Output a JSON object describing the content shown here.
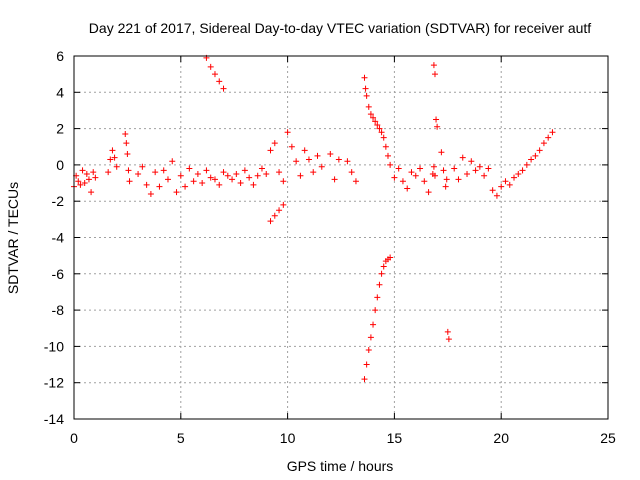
{
  "chart_data": {
    "type": "scatter",
    "title": "Day 221 of 2017, Sidereal Day-to-day VTEC variation (SDTVAR) for receiver autf",
    "xlabel": "GPS time / hours",
    "ylabel": "SDTVAR / TECUs",
    "xlim": [
      0,
      25
    ],
    "ylim": [
      -14,
      6
    ],
    "xticks": [
      0,
      5,
      10,
      15,
      20,
      25
    ],
    "yticks": [
      -14,
      -12,
      -10,
      -8,
      -6,
      -4,
      -2,
      0,
      2,
      4,
      6
    ],
    "xtick_labels": [
      "0",
      "5",
      "10",
      "15",
      "20",
      "25"
    ],
    "ytick_labels": [
      "-14",
      "-12",
      "-10",
      "-8",
      "-6",
      "-4",
      "-2",
      "0",
      "2",
      "4",
      "6"
    ],
    "grid": true,
    "marker": "+",
    "color": "#ff0000",
    "series": [
      {
        "name": "SDTVAR",
        "x": [
          0.0,
          0.1,
          0.2,
          0.3,
          0.4,
          0.5,
          0.6,
          0.7,
          0.8,
          0.9,
          1.0,
          1.6,
          1.7,
          1.8,
          1.9,
          2.0,
          2.4,
          2.45,
          2.5,
          2.55,
          2.6,
          3.0,
          3.2,
          3.4,
          3.6,
          3.8,
          4.0,
          4.2,
          4.4,
          4.6,
          4.8,
          5.0,
          5.2,
          5.4,
          5.6,
          5.8,
          6.0,
          6.2,
          6.4,
          6.6,
          6.8,
          7.0,
          7.2,
          7.4,
          7.6,
          7.8,
          8.0,
          8.2,
          8.4,
          8.6,
          8.8,
          9.0,
          9.2,
          9.4,
          9.6,
          9.8,
          6.2,
          6.4,
          6.6,
          6.8,
          7.0,
          9.2,
          9.4,
          9.6,
          9.8,
          10.0,
          10.2,
          10.4,
          10.6,
          10.8,
          11.0,
          11.2,
          11.4,
          11.6,
          12.0,
          12.2,
          12.4,
          12.8,
          13.0,
          13.2,
          13.6,
          13.65,
          13.7,
          13.8,
          13.9,
          14.0,
          14.1,
          14.2,
          14.3,
          14.4,
          14.5,
          14.6,
          14.7,
          14.8,
          13.6,
          13.7,
          13.8,
          13.9,
          14.0,
          14.1,
          14.2,
          14.3,
          14.4,
          14.5,
          14.6,
          14.7,
          14.8,
          15.0,
          15.2,
          15.4,
          15.6,
          15.8,
          16.0,
          16.2,
          16.4,
          16.6,
          16.8,
          16.85,
          16.9,
          16.95,
          17.0,
          16.85,
          16.9,
          17.2,
          17.3,
          17.4,
          17.45,
          17.5,
          17.55,
          17.8,
          18.0,
          18.2,
          18.4,
          18.6,
          18.8,
          19.0,
          19.2,
          19.4,
          19.6,
          19.8,
          20.0,
          20.2,
          20.4,
          20.6,
          20.8,
          21.0,
          21.2,
          21.4,
          21.6,
          21.8,
          22.0,
          22.2,
          22.4
        ],
        "y": [
          -1.2,
          -0.6,
          -0.9,
          -1.1,
          -0.3,
          -1.0,
          -0.5,
          -0.8,
          -1.5,
          -0.4,
          -0.7,
          -0.4,
          0.3,
          0.8,
          0.4,
          -0.1,
          1.7,
          1.2,
          0.6,
          -0.3,
          -0.9,
          -0.5,
          -0.1,
          -1.1,
          -1.6,
          -0.4,
          -1.2,
          -0.3,
          -0.8,
          0.2,
          -1.5,
          -0.6,
          -1.2,
          -0.2,
          -0.9,
          -0.5,
          -1.0,
          -0.3,
          -0.7,
          -0.8,
          -1.1,
          -0.4,
          -0.6,
          -0.8,
          -0.5,
          -1.0,
          -0.3,
          -0.7,
          -1.1,
          -0.6,
          -0.2,
          -0.5,
          0.8,
          1.2,
          -0.4,
          -0.9,
          5.9,
          5.4,
          5.0,
          4.6,
          4.2,
          -3.1,
          -2.8,
          -2.5,
          -2.2,
          1.8,
          1.0,
          0.2,
          -0.6,
          0.8,
          0.3,
          -0.4,
          0.5,
          -0.1,
          0.6,
          -0.8,
          0.3,
          0.2,
          -0.4,
          -0.9,
          4.8,
          4.2,
          3.8,
          3.2,
          2.8,
          2.6,
          2.4,
          2.2,
          2.0,
          1.8,
          1.5,
          1.0,
          0.5,
          0.0,
          -11.8,
          -11.0,
          -10.2,
          -9.5,
          -8.8,
          -8.0,
          -7.3,
          -6.6,
          -6.0,
          -5.6,
          -5.3,
          -5.2,
          -5.1,
          -0.7,
          -0.2,
          -0.9,
          -1.3,
          -0.4,
          -0.6,
          -0.2,
          -0.9,
          -1.5,
          -0.5,
          5.5,
          5.0,
          2.5,
          2.1,
          -0.1,
          -0.6,
          0.7,
          -0.3,
          -1.2,
          -0.8,
          -9.2,
          -9.6,
          -0.2,
          -0.8,
          0.4,
          -0.5,
          0.2,
          -0.3,
          -0.1,
          -0.6,
          -0.2,
          -1.4,
          -1.7,
          -1.2,
          -0.9,
          -1.1,
          -0.7,
          -0.5,
          -0.3,
          0.0,
          0.3,
          0.5,
          0.8,
          1.2,
          1.5,
          1.8
        ]
      }
    ]
  }
}
